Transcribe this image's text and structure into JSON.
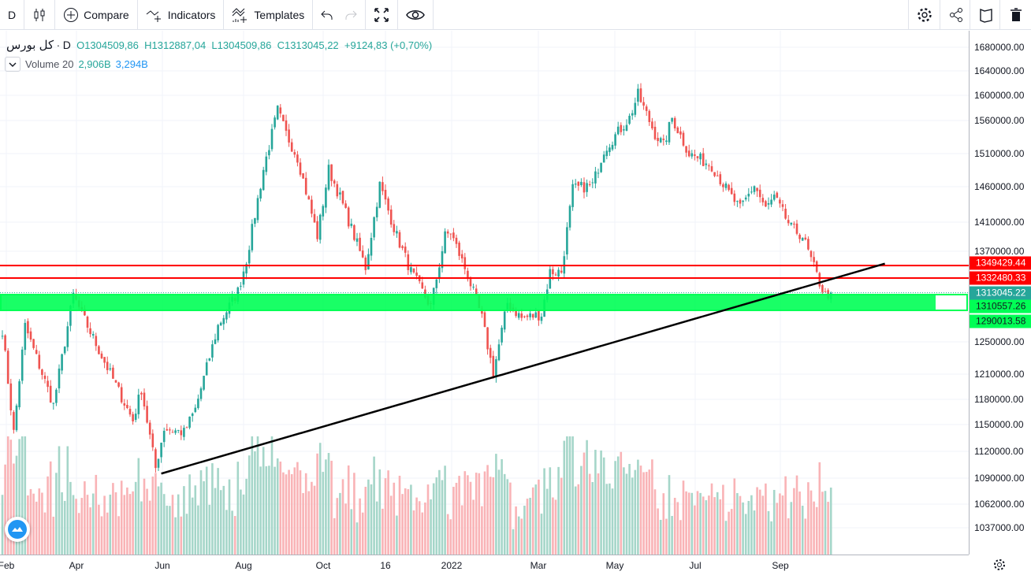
{
  "toolbar": {
    "interval": "D",
    "compare": "Compare",
    "indicators": "Indicators",
    "templates": "Templates"
  },
  "legend": {
    "symbol": "کل بورس",
    "interval": "D",
    "open": "O1304509,86",
    "high": "H1312887,04",
    "low": "L1304509,86",
    "close": "C1313045,22",
    "change": "+9124,83 (+0,70%)",
    "volume_name": "Volume 20",
    "volume_value": "2,906B",
    "volume_ma": "3,294B"
  },
  "colors": {
    "up": "#26a69a",
    "down": "#ef5350",
    "up_vol": "#a5d6c9",
    "down_vol": "#f9b3b6",
    "zone": "#00ff55",
    "hline": "#ff0000",
    "trend": "#000000"
  },
  "price_axis": {
    "labels": [
      "1680000.00",
      "1640000.00",
      "1600000.00",
      "1560000.00",
      "1510000.00",
      "1460000.00",
      "1410000.00",
      "1370000.00",
      "1250000.00",
      "1210000.00",
      "1180000.00",
      "1150000.00",
      "1120000.00",
      "1090000.00",
      "1062000.00",
      "1037000.00"
    ],
    "tags": [
      {
        "text": "1349429.44",
        "bg": "#ff0000",
        "fg": "#ffffff"
      },
      {
        "text": "1332480.33",
        "bg": "#ff0000",
        "fg": "#ffffff"
      },
      {
        "text": "1313045.22",
        "bg": "#26a69a",
        "fg": "#ffffff"
      },
      {
        "text": "1310557.26",
        "bg": "#00ff55",
        "fg": "#131722"
      },
      {
        "text": "1290013.58",
        "bg": "#00ff55",
        "fg": "#131722"
      }
    ]
  },
  "time_axis": [
    "Feb",
    "Apr",
    "Jun",
    "Aug",
    "Oct",
    "16",
    "2022",
    "Mar",
    "May",
    "Jul",
    "Sep"
  ],
  "chart_data": {
    "type": "candlestick",
    "scale": "log",
    "last_price": 1313045.22,
    "horizontal_lines": [
      1349429.44,
      1332480.33
    ],
    "zone": [
      1290013.58,
      1310557.26
    ],
    "trendline": {
      "from": {
        "bar": 56,
        "price": 1095000
      },
      "to": {
        "bar": 311,
        "price": 1352000
      }
    },
    "keypoints": [
      [
        0,
        1265000
      ],
      [
        4,
        1141000
      ],
      [
        8,
        1270000
      ],
      [
        18,
        1173000
      ],
      [
        25,
        1310000
      ],
      [
        28,
        1285000
      ],
      [
        36,
        1225000
      ],
      [
        46,
        1155000
      ],
      [
        49,
        1192000
      ],
      [
        54,
        1101000
      ],
      [
        57,
        1146000
      ],
      [
        64,
        1141000
      ],
      [
        68,
        1168000
      ],
      [
        76,
        1270000
      ],
      [
        83,
        1315000
      ],
      [
        86,
        1357000
      ],
      [
        92,
        1486000
      ],
      [
        97,
        1577000
      ],
      [
        100,
        1540000
      ],
      [
        104,
        1504000
      ],
      [
        111,
        1390000
      ],
      [
        115,
        1486000
      ],
      [
        119,
        1445000
      ],
      [
        128,
        1347000
      ],
      [
        133,
        1463000
      ],
      [
        139,
        1390000
      ],
      [
        144,
        1341000
      ],
      [
        151,
        1295000
      ],
      [
        156,
        1390000
      ],
      [
        158,
        1395000
      ],
      [
        164,
        1336000
      ],
      [
        169,
        1280000
      ],
      [
        173,
        1211000
      ],
      [
        178,
        1300000
      ],
      [
        183,
        1280000
      ],
      [
        190,
        1285000
      ],
      [
        193,
        1341000
      ],
      [
        197,
        1341000
      ],
      [
        201,
        1457000
      ],
      [
        208,
        1463000
      ],
      [
        212,
        1516000
      ],
      [
        221,
        1565000
      ],
      [
        224,
        1602000
      ],
      [
        230,
        1540000
      ],
      [
        233,
        1522000
      ],
      [
        236,
        1565000
      ],
      [
        242,
        1510000
      ],
      [
        250,
        1492000
      ],
      [
        256,
        1451000
      ],
      [
        260,
        1428000
      ],
      [
        265,
        1463000
      ],
      [
        269,
        1428000
      ],
      [
        272,
        1445000
      ],
      [
        278,
        1401000
      ],
      [
        282,
        1390000
      ],
      [
        285,
        1357000
      ],
      [
        288,
        1326000
      ],
      [
        290,
        1310000
      ],
      [
        292,
        1313045
      ]
    ]
  }
}
